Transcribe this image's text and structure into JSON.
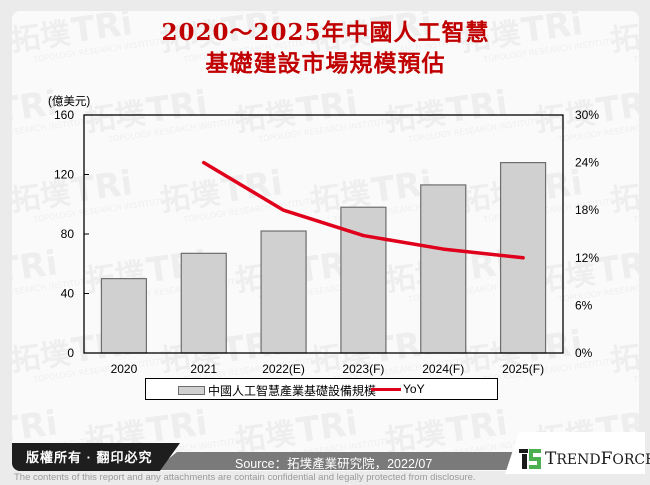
{
  "header": {
    "title_line1": "2020～2025年中國人工智慧",
    "title_line2": "基礎建設市場規模預估"
  },
  "chart_data": {
    "type": "bar",
    "title": "2020～2025年中國人工智慧基礎建設市場規模預估",
    "categories": [
      "2020",
      "2021",
      "2022(E)",
      "2023(F)",
      "2024(F)",
      "2025(F)"
    ],
    "series": [
      {
        "name": "中國人工智慧產業基礎設備規模",
        "type": "bar",
        "axis": "left",
        "values": [
          50,
          67,
          82,
          98,
          113,
          128
        ],
        "color": "#d0d0d0"
      },
      {
        "name": "YoY",
        "type": "line",
        "axis": "right",
        "values": [
          null,
          24.0,
          18.0,
          14.8,
          13.1,
          12.0
        ],
        "color": "#e0001b"
      }
    ],
    "ylabel": "(億美元)",
    "ylim": [
      0,
      160
    ],
    "yticks": [
      "0",
      "40",
      "80",
      "120",
      "160"
    ],
    "y2lim": [
      0,
      30
    ],
    "y2ticks": [
      "0%",
      "6%",
      "12%",
      "18%",
      "24%",
      "30%"
    ],
    "grid": false,
    "legend_position": "bottom"
  },
  "legend": {
    "bar_label": "中國人工智慧產業基礎設備規模",
    "line_label": "YoY"
  },
  "footer": {
    "copyright": "版權所有 · 翻印必究",
    "source": "Source：拓墣產業研究院，2022/07",
    "brand_first": "T",
    "brand_rest1": "REND",
    "brand_f": "F",
    "brand_rest2": "ORCE",
    "disclaimer": "The contents of this report and any attachments are contain confidential and legally protected from disclosure."
  },
  "watermark": {
    "text_cn": "拓墣",
    "text_tri": "TRi",
    "text_en": "TOPOLOGY RESEARCH INSTITUTE"
  }
}
